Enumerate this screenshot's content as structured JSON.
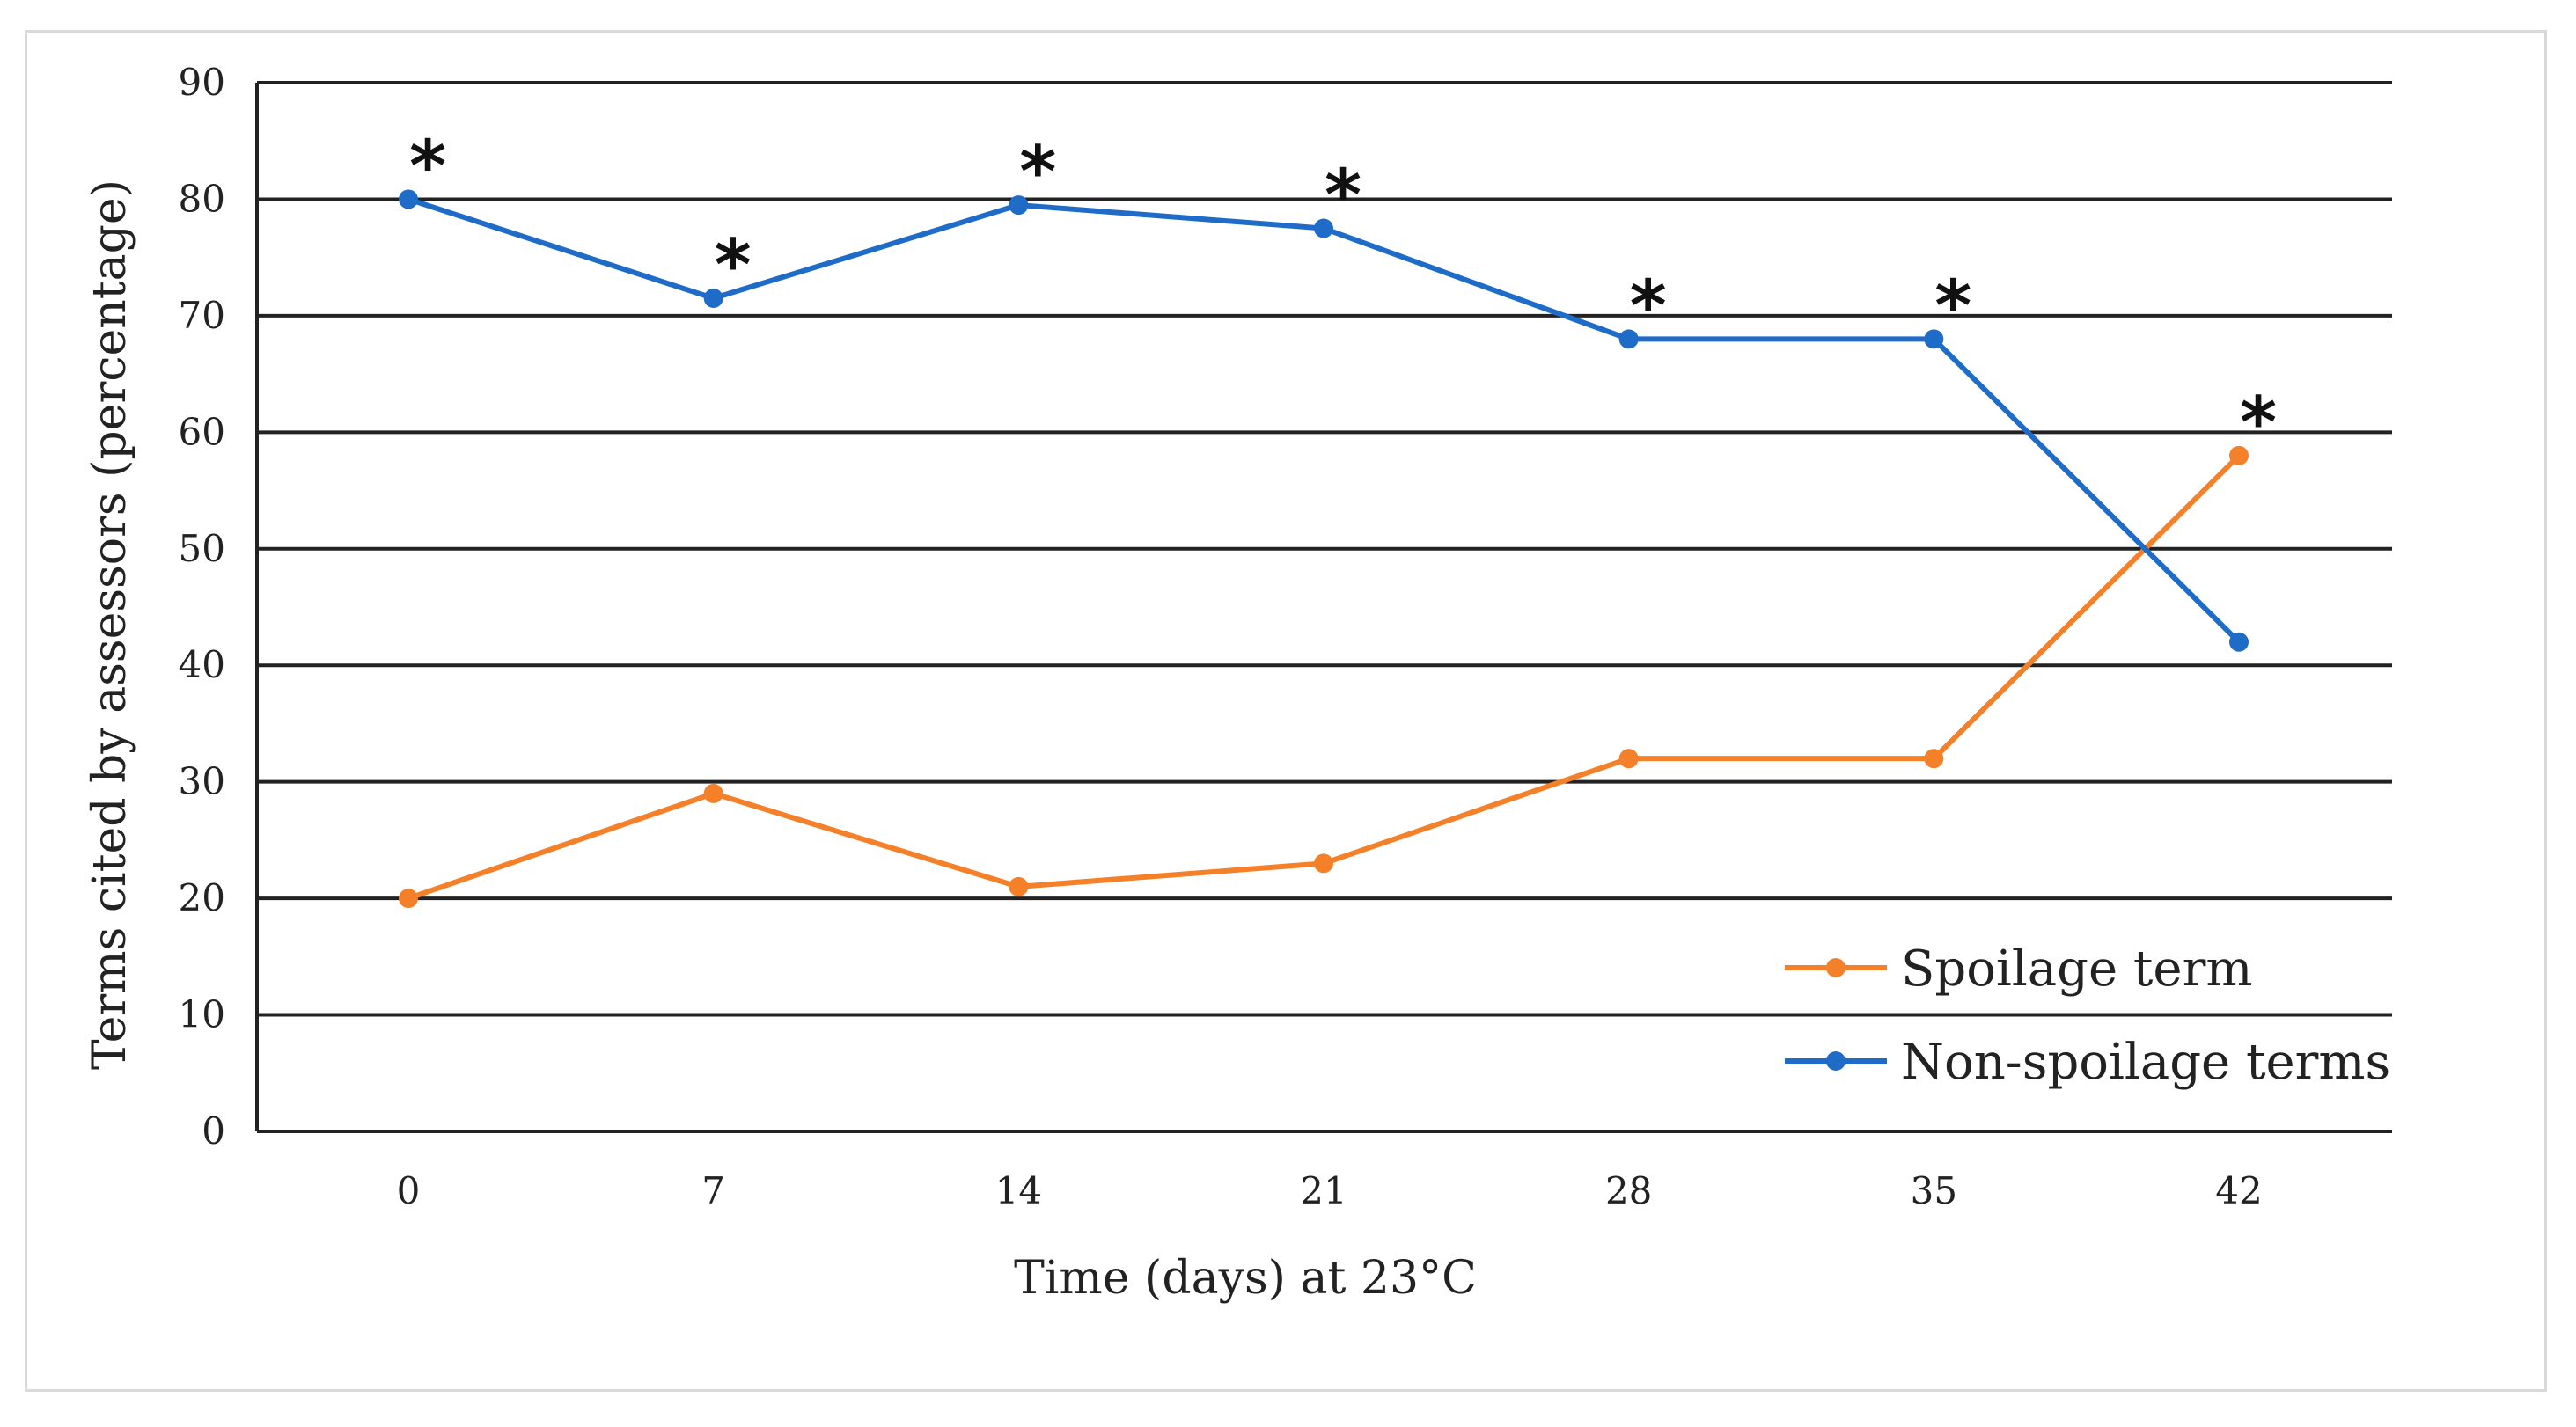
{
  "chart_data": {
    "type": "line",
    "title": "",
    "xlabel": "Time (days) at 23°C",
    "ylabel": "Terms cited by assessors (percentage)",
    "x": [
      0,
      7,
      14,
      21,
      28,
      35,
      42
    ],
    "x_tick_labels": [
      "0",
      "7",
      "14",
      "21",
      "28",
      "35",
      "42"
    ],
    "y_tick_labels": [
      "0",
      "10",
      "20",
      "30",
      "40",
      "50",
      "60",
      "70",
      "80",
      "90"
    ],
    "ylim": [
      0,
      90
    ],
    "grid": true,
    "legend_position": "bottom-right",
    "series": [
      {
        "name": "Spoilage term",
        "color": "#F4812A",
        "values": [
          20,
          29,
          21,
          23,
          32,
          32,
          58
        ]
      },
      {
        "name": "Non-spoilage terms",
        "color": "#1F6CC8",
        "values": [
          80,
          71.5,
          79.5,
          77.5,
          68,
          68,
          42
        ]
      }
    ],
    "annotations": [
      {
        "text": "*",
        "x": 0,
        "y": 80
      },
      {
        "text": "*",
        "x": 7,
        "y": 71.5
      },
      {
        "text": "*",
        "x": 14,
        "y": 79.5
      },
      {
        "text": "*",
        "x": 21,
        "y": 77.5
      },
      {
        "text": "*",
        "x": 28,
        "y": 68
      },
      {
        "text": "*",
        "x": 35,
        "y": 68
      },
      {
        "text": "*",
        "x": 42,
        "y": 58
      }
    ]
  }
}
